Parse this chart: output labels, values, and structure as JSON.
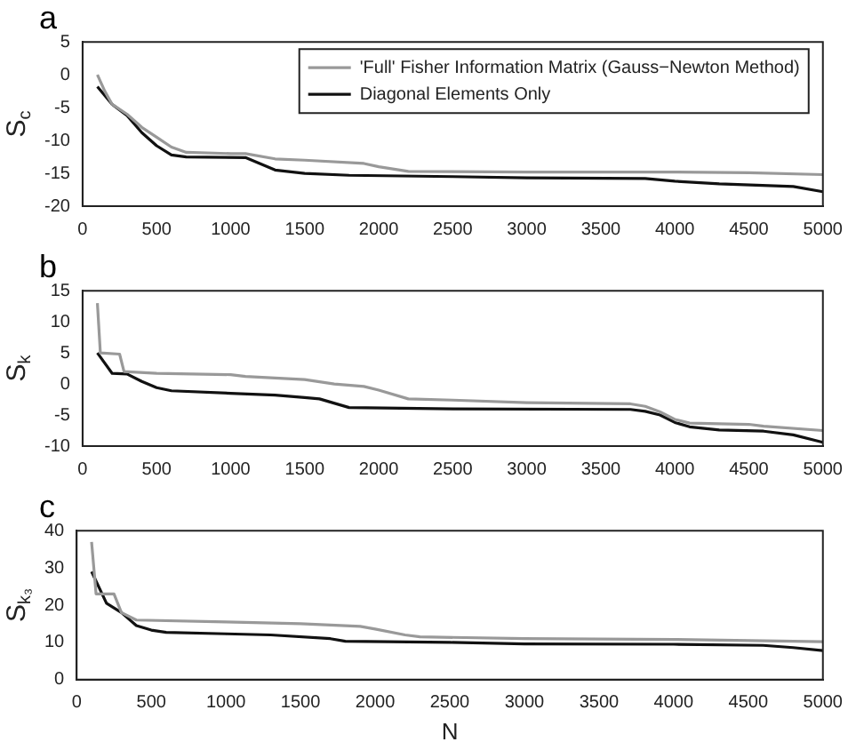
{
  "chart_data": [
    {
      "type": "line",
      "title": "a",
      "ylabel": "S$_{c}$",
      "xlim": [
        0,
        5000
      ],
      "xticks": [
        0,
        500,
        1000,
        1500,
        2000,
        2500,
        3000,
        3500,
        4000,
        4500,
        5000
      ],
      "ylim": [
        -20,
        5
      ],
      "yticks": [
        -20,
        -15,
        -10,
        -5,
        0,
        5
      ],
      "grid": false,
      "legend": "top right",
      "marker": "none",
      "line_style": "solid",
      "series": [
        {
          "name": "'Full' Fisher Information Matrix (Gauss−Newton Method)",
          "color": "#999999",
          "x": [
            100,
            150,
            200,
            300,
            400,
            500,
            600,
            700,
            1000,
            1100,
            1300,
            1500,
            1900,
            2000,
            2200,
            3000,
            4000,
            4500,
            5000
          ],
          "values": [
            0,
            -2.5,
            -4.5,
            -6,
            -8,
            -9.5,
            -11,
            -11.8,
            -12,
            -12,
            -12.8,
            -13,
            -13.5,
            -14,
            -14.7,
            -14.8,
            -14.8,
            -14.9,
            -15.2
          ]
        },
        {
          "name": "Diagonal Elements Only",
          "color": "#111111",
          "x": [
            100,
            200,
            300,
            400,
            500,
            600,
            700,
            1100,
            1300,
            1500,
            1800,
            2500,
            3000,
            3800,
            4000,
            4300,
            4800,
            5000
          ],
          "values": [
            -1.8,
            -4.5,
            -6.2,
            -8.8,
            -10.8,
            -12.2,
            -12.5,
            -12.6,
            -14.5,
            -15,
            -15.3,
            -15.5,
            -15.7,
            -15.8,
            -16.2,
            -16.6,
            -17,
            -17.8
          ]
        }
      ]
    },
    {
      "type": "line",
      "title": "b",
      "ylabel": "S$_{k}$",
      "xlim": [
        0,
        5000
      ],
      "xticks": [
        0,
        500,
        1000,
        1500,
        2000,
        2500,
        3000,
        3500,
        4000,
        4500,
        5000
      ],
      "ylim": [
        -10,
        15
      ],
      "yticks": [
        -10,
        -5,
        0,
        5,
        10,
        15
      ],
      "grid": false,
      "marker": "none",
      "line_style": "solid",
      "series": [
        {
          "color": "#999999",
          "x": [
            100,
            120,
            250,
            280,
            500,
            1000,
            1100,
            1500,
            1700,
            1900,
            2000,
            2200,
            2500,
            3000,
            3700,
            3800,
            3900,
            4000,
            4100,
            4500,
            4600,
            5000
          ],
          "values": [
            13,
            5,
            4.8,
            2,
            1.7,
            1.5,
            1.2,
            0.7,
            0,
            -0.4,
            -1,
            -2.4,
            -2.6,
            -3,
            -3.2,
            -3.6,
            -4.5,
            -5.7,
            -6.3,
            -6.5,
            -6.8,
            -7.5
          ]
        },
        {
          "color": "#111111",
          "x": [
            100,
            200,
            300,
            400,
            500,
            600,
            1000,
            1300,
            1500,
            1600,
            1800,
            2500,
            3700,
            3800,
            3900,
            4000,
            4100,
            4300,
            4600,
            4800,
            5000
          ],
          "values": [
            5,
            1.7,
            1.6,
            0.4,
            -0.6,
            -1.1,
            -1.5,
            -1.8,
            -2.2,
            -2.4,
            -3.8,
            -4,
            -4.1,
            -4.4,
            -5,
            -6.2,
            -6.9,
            -7.4,
            -7.6,
            -8.2,
            -9.4
          ]
        }
      ]
    },
    {
      "type": "line",
      "title": "c",
      "xlabel": "N",
      "ylabel": "S$_{k₃}$",
      "xlim": [
        0,
        5000
      ],
      "xticks": [
        0,
        500,
        1000,
        1500,
        2000,
        2500,
        3000,
        3500,
        4000,
        4500,
        5000
      ],
      "ylim": [
        0,
        40
      ],
      "yticks": [
        0,
        10,
        20,
        30,
        40
      ],
      "grid": false,
      "marker": "none",
      "line_style": "solid",
      "series": [
        {
          "color": "#999999",
          "x": [
            100,
            130,
            250,
            300,
            400,
            1000,
            1500,
            1900,
            2000,
            2200,
            2300,
            3000,
            4000,
            5000
          ],
          "values": [
            37,
            23,
            23,
            18,
            16,
            15.5,
            15,
            14.3,
            13.6,
            12,
            11.5,
            11,
            10.8,
            10.2
          ]
        },
        {
          "color": "#111111",
          "x": [
            100,
            200,
            300,
            400,
            500,
            600,
            1000,
            1300,
            1700,
            1800,
            2500,
            3000,
            4000,
            4600,
            4800,
            5000
          ],
          "values": [
            29,
            20.5,
            18,
            14.5,
            13.3,
            12.7,
            12.3,
            12,
            11,
            10.3,
            10,
            9.6,
            9.5,
            9.2,
            8.6,
            7.8
          ]
        }
      ]
    }
  ]
}
